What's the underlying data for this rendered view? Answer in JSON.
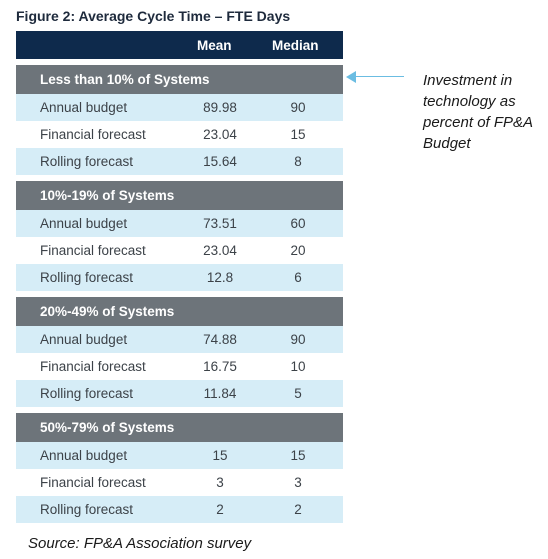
{
  "figure": {
    "title": "Figure 2: Average Cycle Time – FTE Days",
    "columns": {
      "mean": "Mean",
      "median": "Median"
    },
    "groups": [
      {
        "label": "Less than 10% of Systems",
        "rows": [
          {
            "label": "Annual budget",
            "mean": "89.98",
            "median": "90"
          },
          {
            "label": "Financial forecast",
            "mean": "23.04",
            "median": "15"
          },
          {
            "label": "Rolling forecast",
            "mean": "15.64",
            "median": "8"
          }
        ]
      },
      {
        "label": "10%-19% of Systems",
        "rows": [
          {
            "label": "Annual budget",
            "mean": "73.51",
            "median": "60"
          },
          {
            "label": "Financial forecast",
            "mean": "23.04",
            "median": "20"
          },
          {
            "label": "Rolling forecast",
            "mean": "12.8",
            "median": "6"
          }
        ]
      },
      {
        "label": "20%-49% of Systems",
        "rows": [
          {
            "label": "Annual budget",
            "mean": "74.88",
            "median": "90"
          },
          {
            "label": "Financial forecast",
            "mean": "16.75",
            "median": "10"
          },
          {
            "label": "Rolling forecast",
            "mean": "11.84",
            "median": "5"
          }
        ]
      },
      {
        "label": "50%-79% of Systems",
        "rows": [
          {
            "label": "Annual budget",
            "mean": "15",
            "median": "15"
          },
          {
            "label": "Financial forecast",
            "mean": "3",
            "median": "3"
          },
          {
            "label": "Rolling forecast",
            "mean": "2",
            "median": "2"
          }
        ]
      }
    ],
    "annotation": "Investment in technology as percent of FP&A Budget",
    "source": "Source: FP&A Association survey"
  },
  "colors": {
    "header_bg": "#0e2a4c",
    "group_bg": "#6d747a",
    "row_shade": "#d6edf7",
    "arrow": "#6bbde2"
  }
}
